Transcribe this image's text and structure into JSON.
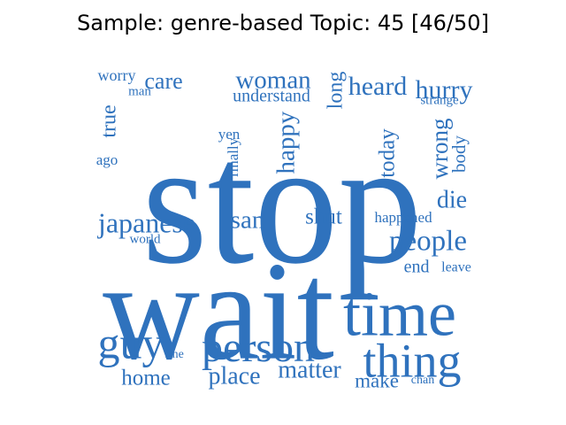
{
  "title": "Sample: genre-based Topic: 45 [46/50]",
  "colors": {
    "word": "#2f72bd",
    "title": "#000000",
    "background": "#ffffff"
  },
  "words": [
    {
      "text": "stop"
    },
    {
      "text": "wait"
    },
    {
      "text": "time"
    },
    {
      "text": "thing"
    },
    {
      "text": "person"
    },
    {
      "text": "guy"
    },
    {
      "text": "people"
    },
    {
      "text": "japanese"
    },
    {
      "text": "san"
    },
    {
      "text": "shut"
    },
    {
      "text": "place"
    },
    {
      "text": "matter"
    },
    {
      "text": "home"
    },
    {
      "text": "make"
    },
    {
      "text": "woman"
    },
    {
      "text": "heard"
    },
    {
      "text": "hurry"
    },
    {
      "text": "care"
    },
    {
      "text": "worry"
    },
    {
      "text": "man"
    },
    {
      "text": "understand"
    },
    {
      "text": "long"
    },
    {
      "text": "strange"
    },
    {
      "text": "true"
    },
    {
      "text": "ago"
    },
    {
      "text": "yen"
    },
    {
      "text": "finally"
    },
    {
      "text": "happy"
    },
    {
      "text": "today"
    },
    {
      "text": "wrong"
    },
    {
      "text": "body"
    },
    {
      "text": "die"
    },
    {
      "text": "happened"
    },
    {
      "text": "world"
    },
    {
      "text": "end"
    },
    {
      "text": "leave"
    },
    {
      "text": "fine"
    },
    {
      "text": "chan"
    }
  ]
}
